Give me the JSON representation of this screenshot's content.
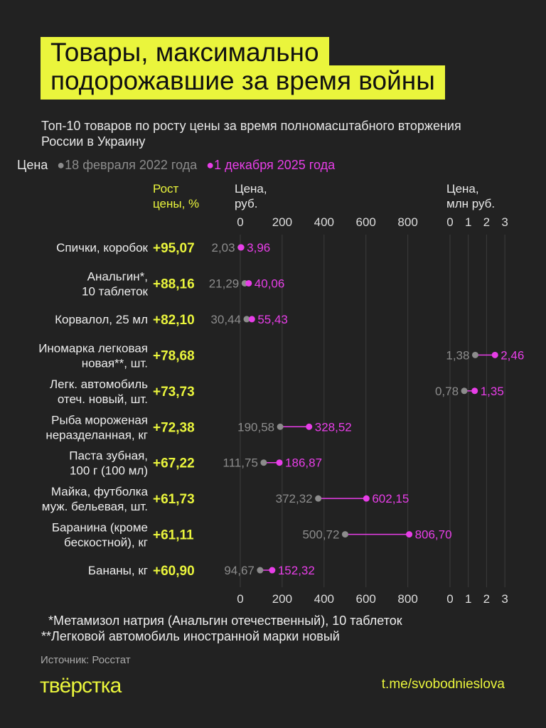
{
  "title": [
    "Товары, максимально",
    "подорожавшие за время войны"
  ],
  "subtitle": "Топ-10 товаров по росту цены за время полномасштабного вторжения России в Украину",
  "legend": {
    "label": "Цена",
    "old": "18 февраля 2022 года",
    "new": "1 декабря 2025 года"
  },
  "colors": {
    "background": "#222222",
    "accent": "#eaf53c",
    "old": "#8c8c8c",
    "new": "#e83ee8"
  },
  "chart_data": {
    "type": "dumbbell",
    "growth_header": [
      "Рост",
      "цены, %"
    ],
    "axes": [
      {
        "id": "rub",
        "label": [
          "Цена,",
          "руб."
        ],
        "range": [
          0,
          900
        ],
        "ticks": [
          0,
          200,
          400,
          600,
          800
        ]
      },
      {
        "id": "mln",
        "label": [
          "Цена,",
          "млн руб."
        ],
        "range": [
          0,
          3
        ],
        "ticks": [
          0,
          1,
          2,
          3
        ]
      }
    ],
    "series": [
      {
        "name": "18 февраля 2022 года"
      },
      {
        "name": "1 декабря 2025 года"
      }
    ],
    "items": [
      {
        "label": [
          "Спички, коробок"
        ],
        "growth": "+95,07",
        "old": 2.03,
        "new": 3.96,
        "old_label": "2,03",
        "new_label": "3,96",
        "axis": "rub"
      },
      {
        "label": [
          "Анальгин*,",
          "10 таблеток"
        ],
        "growth": "+88,16",
        "old": 21.29,
        "new": 40.06,
        "old_label": "21,29",
        "new_label": "40,06",
        "axis": "rub"
      },
      {
        "label": [
          "Корвалол, 25 мл"
        ],
        "growth": "+82,10",
        "old": 30.44,
        "new": 55.43,
        "old_label": "30,44",
        "new_label": "55,43",
        "axis": "rub"
      },
      {
        "label": [
          "Иномарка легковая",
          "новая**, шт."
        ],
        "growth": "+78,68",
        "old": 1.38,
        "new": 2.46,
        "old_label": "1,38",
        "new_label": "2,46",
        "axis": "mln"
      },
      {
        "label": [
          "Легк. автомобиль",
          "отеч. новый, шт."
        ],
        "growth": "+73,73",
        "old": 0.78,
        "new": 1.35,
        "old_label": "0,78",
        "new_label": "1,35",
        "axis": "mln"
      },
      {
        "label": [
          "Рыба мороженая",
          "неразделанная, кг"
        ],
        "growth": "+72,38",
        "old": 190.58,
        "new": 328.52,
        "old_label": "190,58",
        "new_label": "328,52",
        "axis": "rub"
      },
      {
        "label": [
          "Паста зубная,",
          "100 г (100 мл)"
        ],
        "growth": "+67,22",
        "old": 111.75,
        "new": 186.87,
        "old_label": "111,75",
        "new_label": "186,87",
        "axis": "rub"
      },
      {
        "label": [
          "Майка, футболка",
          "муж. бельевая, шт."
        ],
        "growth": "+61,73",
        "old": 372.32,
        "new": 602.15,
        "old_label": "372,32",
        "new_label": "602,15",
        "axis": "rub"
      },
      {
        "label": [
          "Баранина (кроме",
          "бескостной), кг"
        ],
        "growth": "+61,11",
        "old": 500.72,
        "new": 806.7,
        "old_label": "500,72",
        "new_label": "806,70",
        "axis": "rub"
      },
      {
        "label": [
          "Бананы, кг"
        ],
        "growth": "+60,90",
        "old": 94.67,
        "new": 152.32,
        "old_label": "94,67",
        "new_label": "152,32",
        "axis": "rub"
      }
    ]
  },
  "footnotes": [
    "  *Метамизол натрия (Анальгин отечественный), 10 таблеток",
    "**Легковой автомобиль иностранной марки новый"
  ],
  "source": "Источник: Росстат",
  "logo": "твёрстка",
  "link": "t.me/svobodnieslova"
}
